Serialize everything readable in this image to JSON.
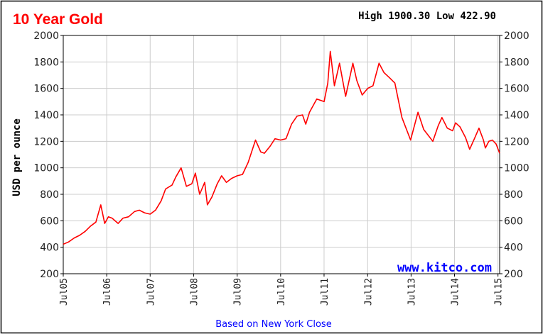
{
  "colors": {
    "series": "#ff0000",
    "title": "#ff0000",
    "grid": "#cccccc",
    "watermark": "#0000ff",
    "footer": "#0000ff",
    "border": "#000000",
    "text": "#000000"
  },
  "chart_data": {
    "type": "line",
    "title": "10 Year Gold",
    "high_low": "High 1900.30 Low 422.90",
    "ylabel": "USD per ounce",
    "xlabel": "",
    "ylim": [
      200,
      2000
    ],
    "yticks": [
      200,
      400,
      600,
      800,
      1000,
      1200,
      1400,
      1600,
      1800,
      2000
    ],
    "yticklabels": [
      "200",
      "400",
      "600",
      "800",
      "1000",
      "1200",
      "1400",
      "1600",
      "1800",
      "2000"
    ],
    "xlim": [
      "2005-07-01",
      "2015-07-15"
    ],
    "xticks": [
      "2005-07-01",
      "2006-07-01",
      "2007-07-01",
      "2008-07-01",
      "2009-07-01",
      "2010-07-01",
      "2011-07-01",
      "2012-07-01",
      "2013-07-01",
      "2014-07-01",
      "2015-07-01"
    ],
    "xticklabels": [
      "Jul05",
      "Jul06",
      "Jul07",
      "Jul08",
      "Jul09",
      "Jul10",
      "Jul11",
      "Jul12",
      "Jul13",
      "Jul14",
      "Jul15"
    ],
    "grid": true,
    "watermark": "www.kitco.com",
    "footer": "Based on New York Close",
    "series": [
      {
        "x": [
          "2005-07-01",
          "2005-08-15",
          "2005-10-01",
          "2005-11-15",
          "2006-01-01",
          "2006-02-15",
          "2006-04-01",
          "2006-05-12",
          "2006-06-14",
          "2006-07-15",
          "2006-08-15",
          "2006-10-05",
          "2006-11-15",
          "2007-01-01",
          "2007-02-20",
          "2007-04-01",
          "2007-05-15",
          "2007-07-01",
          "2007-08-15",
          "2007-10-01",
          "2007-11-08",
          "2008-01-01",
          "2008-02-01",
          "2008-03-17",
          "2008-05-01",
          "2008-06-15",
          "2008-07-15",
          "2008-08-20",
          "2008-10-01",
          "2008-10-24",
          "2008-12-01",
          "2009-01-15",
          "2009-02-20",
          "2009-04-01",
          "2009-05-15",
          "2009-07-01",
          "2009-08-15",
          "2009-10-01",
          "2009-12-02",
          "2010-01-15",
          "2010-02-15",
          "2010-04-01",
          "2010-05-15",
          "2010-07-01",
          "2010-08-15",
          "2010-10-01",
          "2010-11-15",
          "2011-01-01",
          "2011-01-28",
          "2011-03-01",
          "2011-05-01",
          "2011-07-01",
          "2011-08-01",
          "2011-08-22",
          "2011-09-26",
          "2011-11-08",
          "2011-12-29",
          "2012-02-28",
          "2012-04-01",
          "2012-05-16",
          "2012-07-01",
          "2012-08-15",
          "2012-10-05",
          "2012-11-15",
          "2013-01-01",
          "2013-02-15",
          "2013-04-15",
          "2013-06-27",
          "2013-08-28",
          "2013-10-15",
          "2013-12-31",
          "2014-02-15",
          "2014-03-17",
          "2014-05-01",
          "2014-06-15",
          "2014-07-10",
          "2014-08-15",
          "2014-10-01",
          "2014-11-05",
          "2014-12-15",
          "2015-01-22",
          "2015-03-01",
          "2015-03-17",
          "2015-04-15",
          "2015-05-15",
          "2015-06-15",
          "2015-07-15"
        ],
        "y": [
          423,
          440,
          470,
          490,
          520,
          560,
          590,
          720,
          580,
          630,
          620,
          580,
          620,
          630,
          670,
          680,
          660,
          650,
          680,
          750,
          840,
          870,
          930,
          1000,
          860,
          880,
          960,
          800,
          890,
          720,
          780,
          880,
          940,
          890,
          920,
          940,
          950,
          1040,
          1210,
          1120,
          1110,
          1160,
          1220,
          1210,
          1220,
          1330,
          1390,
          1400,
          1330,
          1420,
          1520,
          1500,
          1640,
          1880,
          1620,
          1790,
          1540,
          1790,
          1660,
          1550,
          1600,
          1620,
          1790,
          1720,
          1680,
          1640,
          1380,
          1210,
          1420,
          1290,
          1200,
          1320,
          1380,
          1300,
          1280,
          1340,
          1310,
          1230,
          1140,
          1220,
          1300,
          1210,
          1150,
          1200,
          1210,
          1180,
          1110
        ]
      }
    ]
  }
}
